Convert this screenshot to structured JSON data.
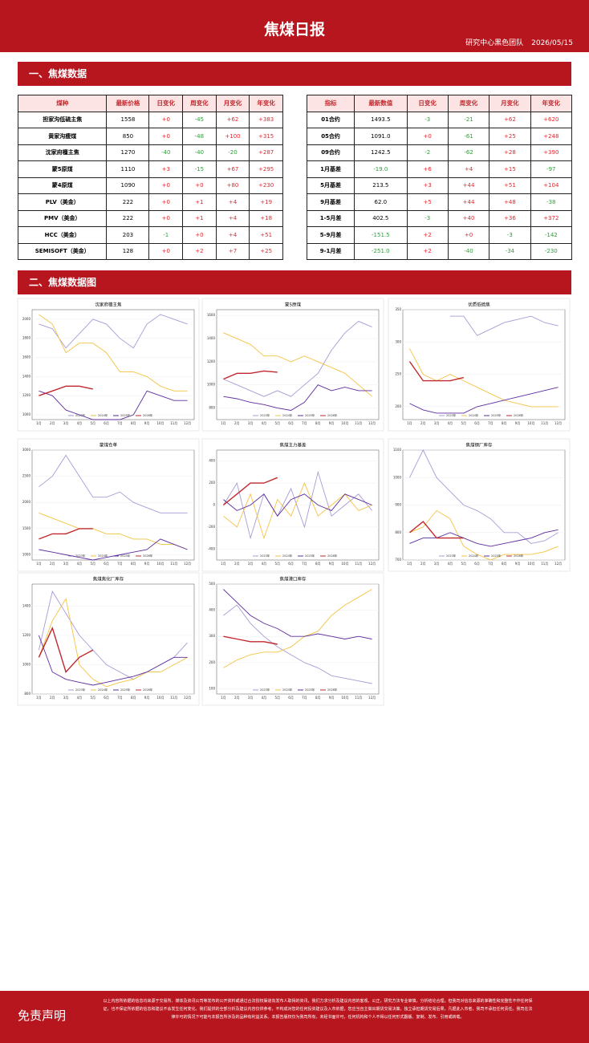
{
  "header": {
    "title": "焦煤日报",
    "team": "研究中心黑色团队",
    "date": "2026/05/15"
  },
  "sections": [
    "一、焦煤数据",
    "二、焦煤数据图"
  ],
  "table_left": {
    "columns": [
      "煤种",
      "最新价格",
      "日变化",
      "周变化",
      "月变化",
      "年变化"
    ],
    "rows": [
      [
        "担家沟低硫主焦",
        "1558",
        "+0",
        "-45",
        "+62",
        "+383"
      ],
      [
        "黄家沟瘦煤",
        "850",
        "+0",
        "-48",
        "+100",
        "+315"
      ],
      [
        "沈家府檀主焦",
        "1270",
        "-40",
        "-40",
        "-20",
        "+287"
      ],
      [
        "蒙5原煤",
        "1110",
        "+3",
        "-15",
        "+67",
        "+295"
      ],
      [
        "蒙4原煤",
        "1090",
        "+0",
        "+0",
        "+80",
        "+230"
      ],
      [
        "PLV（美金）",
        "222",
        "+0",
        "+1",
        "+4",
        "+19"
      ],
      [
        "PMV（美金）",
        "222",
        "+0",
        "+1",
        "+4",
        "+18"
      ],
      [
        "HCC（美金）",
        "203",
        "-1",
        "+0",
        "+4",
        "+51"
      ],
      [
        "SEMISOFT（美金）",
        "128",
        "+0",
        "+2",
        "+7",
        "+25"
      ]
    ]
  },
  "table_right": {
    "columns": [
      "指标",
      "最新数值",
      "日变化",
      "周变化",
      "月变化",
      "年变化"
    ],
    "rows": [
      [
        "01合约",
        "1493.5",
        "-3",
        "-21",
        "+62",
        "+620"
      ],
      [
        "05合约",
        "1091.0",
        "+0",
        "-61",
        "+25",
        "+248"
      ],
      [
        "09合约",
        "1242.5",
        "-2",
        "-62",
        "+28",
        "+390"
      ],
      [
        "1月基差",
        "-19.0",
        "+6",
        "+4",
        "+15",
        "-97"
      ],
      [
        "5月基差",
        "213.5",
        "+3",
        "+44",
        "+51",
        "+104"
      ],
      [
        "9月基差",
        "62.0",
        "+5",
        "+44",
        "+48",
        "-38"
      ],
      [
        "1-5月差",
        "402.5",
        "-3",
        "+40",
        "+36",
        "+372"
      ],
      [
        "5-9月差",
        "-151.5",
        "+2",
        "+0",
        "-3",
        "-142"
      ],
      [
        "9-1月差",
        "-251.0",
        "+2",
        "-40",
        "-34",
        "-230"
      ]
    ]
  },
  "chart_data": [
    {
      "type": "line",
      "title": "沈家府檀主焦",
      "categories": [
        "1月",
        "2月",
        "3月",
        "4月",
        "5月",
        "6月",
        "7月",
        "8月",
        "9月",
        "10月",
        "11月",
        "12月"
      ],
      "ylim": [
        950,
        2100
      ],
      "yticks": [
        1000,
        1200,
        1400,
        1600,
        1800,
        2000
      ],
      "series": [
        {
          "name": "2023年",
          "color": "#a99ad6",
          "values": [
            1950,
            1900,
            1700,
            1850,
            2000,
            1950,
            1800,
            1700,
            1950,
            2050,
            2000,
            1950
          ]
        },
        {
          "name": "2024年",
          "color": "#f5c342",
          "values": [
            2050,
            1950,
            1650,
            1750,
            1750,
            1650,
            1450,
            1450,
            1400,
            1300,
            1250,
            1250
          ]
        },
        {
          "name": "2025年",
          "color": "#5b2d9e",
          "values": [
            1250,
            1200,
            1050,
            1000,
            950,
            950,
            950,
            1000,
            1250,
            1200,
            1150,
            1150
          ]
        },
        {
          "name": "2026年",
          "color": "#c0282d",
          "values": [
            1200,
            1250,
            1300,
            1300,
            1270,
            null,
            null,
            null,
            null,
            null,
            null,
            null
          ]
        }
      ]
    },
    {
      "type": "line",
      "title": "蒙5原煤",
      "categories": [
        "1月",
        "2月",
        "3月",
        "4月",
        "5月",
        "6月",
        "7月",
        "8月",
        "9月",
        "10月",
        "11月",
        "12月"
      ],
      "ylim": [
        700,
        1650
      ],
      "yticks": [
        800,
        1000,
        1200,
        1400,
        1600
      ],
      "series": [
        {
          "name": "2023年",
          "color": "#a99ad6",
          "values": [
            1050,
            1000,
            950,
            900,
            950,
            900,
            1000,
            1100,
            1300,
            1450,
            1550,
            1500
          ]
        },
        {
          "name": "2024年",
          "color": "#f5c342",
          "values": [
            1450,
            1400,
            1350,
            1250,
            1250,
            1200,
            1250,
            1200,
            1150,
            1100,
            1000,
            900
          ]
        },
        {
          "name": "2025年",
          "color": "#5b2d9e",
          "values": [
            900,
            880,
            850,
            830,
            800,
            780,
            850,
            1000,
            950,
            980,
            950,
            950
          ]
        },
        {
          "name": "2026年",
          "color": "#c0282d",
          "values": [
            1050,
            1100,
            1100,
            1120,
            1110,
            null,
            null,
            null,
            null,
            null,
            null,
            null
          ]
        }
      ]
    },
    {
      "type": "line",
      "title": "优质低硫焦",
      "categories": [
        "1月",
        "2月",
        "3月",
        "4月",
        "5月",
        "6月",
        "7月",
        "8月",
        "9月",
        "10月",
        "11月",
        "12月"
      ],
      "ylim": [
        180,
        350
      ],
      "yticks": [
        200,
        250,
        300,
        350
      ],
      "series": [
        {
          "name": "2023年",
          "color": "#a99ad6",
          "values": [
            null,
            null,
            null,
            340,
            340,
            310,
            320,
            330,
            335,
            340,
            330,
            325
          ]
        },
        {
          "name": "2024年",
          "color": "#f5c342",
          "values": [
            290,
            250,
            240,
            250,
            240,
            230,
            220,
            210,
            205,
            200,
            200,
            200
          ]
        },
        {
          "name": "2025年",
          "color": "#5b2d9e",
          "values": [
            205,
            195,
            190,
            190,
            190,
            200,
            205,
            210,
            215,
            220,
            225,
            230
          ]
        },
        {
          "name": "2026年",
          "color": "#c0282d",
          "values": [
            270,
            240,
            240,
            240,
            245,
            null,
            null,
            null,
            null,
            null,
            null,
            null
          ]
        }
      ]
    },
    {
      "type": "line",
      "title": "蒙煤仓单",
      "categories": [
        "1月",
        "2月",
        "3月",
        "4月",
        "5月",
        "6月",
        "7月",
        "8月",
        "9月",
        "10月",
        "11月",
        "12月"
      ],
      "ylim": [
        900,
        3000
      ],
      "yticks": [
        1000,
        1500,
        2000,
        2500,
        3000
      ],
      "series": [
        {
          "name": "2023年",
          "color": "#a99ad6",
          "values": [
            2300,
            2500,
            2900,
            2500,
            2100,
            2100,
            2200,
            2000,
            1900,
            1800,
            1800,
            1800
          ]
        },
        {
          "name": "2024年",
          "color": "#f5c342",
          "values": [
            1800,
            1700,
            1600,
            1500,
            1500,
            1400,
            1400,
            1300,
            1300,
            1200,
            1200,
            1100
          ]
        },
        {
          "name": "2025年",
          "color": "#5b2d9e",
          "values": [
            1100,
            1050,
            1000,
            950,
            900,
            950,
            1000,
            1050,
            1100,
            1300,
            1200,
            1100
          ]
        },
        {
          "name": "2026年",
          "color": "#c0282d",
          "values": [
            1300,
            1400,
            1400,
            1500,
            1500,
            null,
            null,
            null,
            null,
            null,
            null,
            null
          ]
        }
      ]
    },
    {
      "type": "line",
      "title": "焦煤主力基差",
      "categories": [
        "1月",
        "2月",
        "3月",
        "4月",
        "5月",
        "6月",
        "7月",
        "8月",
        "9月",
        "10月",
        "11月",
        "12月"
      ],
      "ylim": [
        -500,
        500
      ],
      "yticks": [
        -400,
        -200,
        0,
        200,
        400
      ],
      "series": [
        {
          "name": "2023年",
          "color": "#a99ad6",
          "values": [
            0,
            200,
            -300,
            100,
            -100,
            150,
            -200,
            300,
            -100,
            0,
            100,
            -50
          ]
        },
        {
          "name": "2024年",
          "color": "#f5c342",
          "values": [
            -100,
            -200,
            100,
            -300,
            50,
            -100,
            200,
            -100,
            0,
            100,
            -50,
            0
          ]
        },
        {
          "name": "2025年",
          "color": "#5b2d9e",
          "values": [
            50,
            -50,
            0,
            100,
            -100,
            50,
            100,
            0,
            -50,
            100,
            50,
            0
          ]
        },
        {
          "name": "2026年",
          "color": "#c0282d",
          "values": [
            0,
            100,
            200,
            200,
            250,
            null,
            null,
            null,
            null,
            null,
            null,
            null
          ]
        }
      ]
    },
    {
      "type": "line",
      "title": "焦煤钢厂库存",
      "categories": [
        "1月",
        "2月",
        "3月",
        "4月",
        "5月",
        "6月",
        "7月",
        "8月",
        "9月",
        "10月",
        "11月",
        "12月"
      ],
      "ylim": [
        700,
        1100
      ],
      "yticks": [
        700,
        800,
        900,
        1000,
        1100
      ],
      "series": [
        {
          "name": "2023年",
          "color": "#a99ad6",
          "values": [
            1000,
            1100,
            1000,
            950,
            900,
            880,
            850,
            800,
            800,
            760,
            770,
            800
          ]
        },
        {
          "name": "2024年",
          "color": "#f5c342",
          "values": [
            800,
            820,
            880,
            850,
            750,
            720,
            700,
            720,
            720,
            720,
            730,
            750
          ]
        },
        {
          "name": "2025年",
          "color": "#5b2d9e",
          "values": [
            760,
            780,
            780,
            800,
            780,
            760,
            750,
            760,
            770,
            780,
            800,
            810
          ]
        },
        {
          "name": "2026年",
          "color": "#c0282d",
          "values": [
            800,
            840,
            780,
            780,
            780,
            null,
            null,
            null,
            null,
            null,
            null,
            null
          ]
        }
      ]
    },
    {
      "type": "line",
      "title": "焦煤焦化厂库存",
      "categories": [
        "1月",
        "2月",
        "3月",
        "4月",
        "5月",
        "6月",
        "7月",
        "8月",
        "9月",
        "10月",
        "11月",
        "12月"
      ],
      "ylim": [
        800,
        1550
      ],
      "yticks": [
        800,
        1000,
        1200,
        1400
      ],
      "series": [
        {
          "name": "2023年",
          "color": "#a99ad6",
          "values": [
            1100,
            1500,
            1350,
            1200,
            1100,
            1000,
            950,
            900,
            950,
            1000,
            1050,
            1150
          ]
        },
        {
          "name": "2024年",
          "color": "#f5c342",
          "values": [
            1050,
            1300,
            1450,
            1000,
            900,
            850,
            880,
            900,
            950,
            950,
            1000,
            1050
          ]
        },
        {
          "name": "2025年",
          "color": "#5b2d9e",
          "values": [
            1200,
            950,
            900,
            880,
            860,
            880,
            900,
            920,
            950,
            1000,
            1050,
            1050
          ]
        },
        {
          "name": "2026年",
          "color": "#c0282d",
          "values": [
            1050,
            1250,
            950,
            1050,
            1100,
            null,
            null,
            null,
            null,
            null,
            null,
            null
          ]
        }
      ]
    },
    {
      "type": "line",
      "title": "焦煤港口库存",
      "categories": [
        "1月",
        "2月",
        "3月",
        "4月",
        "5月",
        "6月",
        "7月",
        "8月",
        "9月",
        "10月",
        "11月",
        "12月"
      ],
      "ylim": [
        80,
        500
      ],
      "yticks": [
        100,
        200,
        300,
        400,
        500
      ],
      "series": [
        {
          "name": "2023年",
          "color": "#a99ad6",
          "values": [
            380,
            420,
            350,
            300,
            260,
            230,
            200,
            180,
            150,
            140,
            130,
            120
          ]
        },
        {
          "name": "2024年",
          "color": "#f5c342",
          "values": [
            180,
            210,
            230,
            240,
            240,
            260,
            300,
            320,
            380,
            420,
            450,
            480
          ]
        },
        {
          "name": "2025年",
          "color": "#5b2d9e",
          "values": [
            480,
            430,
            380,
            350,
            330,
            300,
            300,
            310,
            300,
            290,
            300,
            290
          ]
        },
        {
          "name": "2026年",
          "color": "#c0282d",
          "values": [
            300,
            290,
            280,
            280,
            270,
            null,
            null,
            null,
            null,
            null,
            null,
            null
          ]
        }
      ]
    }
  ],
  "disclaimer": {
    "title": "免责声明",
    "text": "以上内容所依据的信息均来源于交易所、媒体及资讯公司等发布的公开资料或通过合法授权渠道向发布人取得的资讯，我们力求分析及建议内容的客观、公正，研究方法专业审慎，分析结论合理，但我司对信息来源的准确性和完整性不作任何保证，也不保证所依据的信息和建议不会发生任何变化。我们提供的全部分析及建议内容仅供参考，不构成对您的任何投资建议及入市依据，您应当自主做出期货交易决策，独立承担期货交易后果，凡据此入市者，我司不承担任何责任。我司在法律许可的情况下可能与本报告所涉及的品种有利益关系。本报告版权仅为我司所有，未经书面许可，任何机构和个人不得以任何形式翻版、复制、发布、引用或转载。"
  }
}
